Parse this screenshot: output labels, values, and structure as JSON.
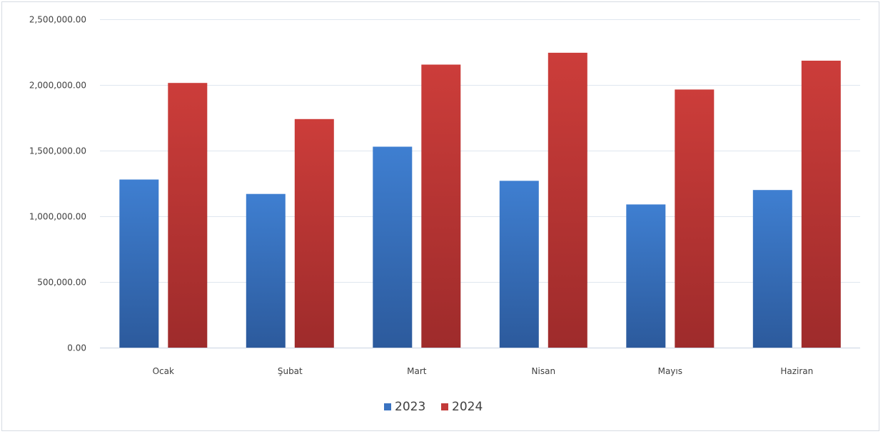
{
  "chart_data": {
    "type": "bar",
    "title": "",
    "xlabel": "",
    "ylabel": "",
    "categories": [
      "Ocak",
      "Şubat",
      "Mart",
      "Nisan",
      "Mayıs",
      "Haziran"
    ],
    "series": [
      {
        "name": "2023",
        "color": "#3a73c1",
        "values": [
          1280000,
          1170000,
          1530000,
          1270000,
          1090000,
          1200000
        ]
      },
      {
        "name": "2024",
        "color": "#c23a39",
        "values": [
          2015000,
          1740000,
          2155000,
          2245000,
          1965000,
          2185000
        ]
      }
    ],
    "ylim": [
      0,
      2500000
    ],
    "yticks": [
      0,
      500000,
      1000000,
      1500000,
      2000000,
      2500000
    ],
    "ytick_labels": [
      "0.00",
      "500,000.00",
      "1,000,000.00",
      "1,500,000.00",
      "2,000,000.00",
      "2,500,000.00"
    ],
    "grid": true,
    "legend_position": "bottom"
  }
}
